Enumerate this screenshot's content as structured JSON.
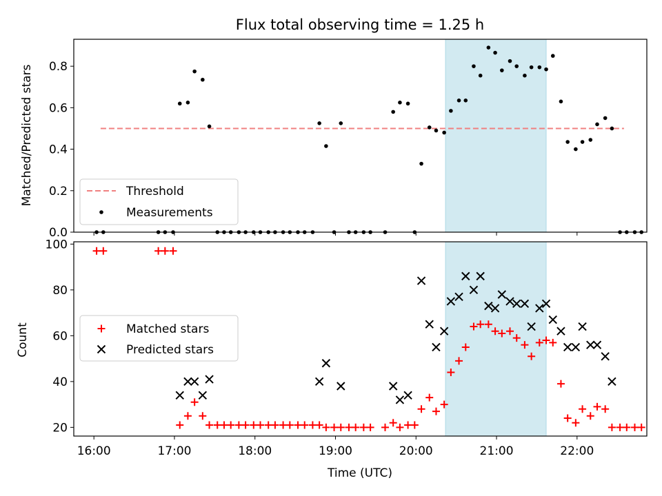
{
  "chart_data": [
    {
      "type": "scatter",
      "title": "Flux total observing time = 1.25 h",
      "ylabel": "Matched/Predicted stars",
      "xlim": [
        "15:45",
        "22:52"
      ],
      "ylim": [
        0,
        0.93
      ],
      "yticks": [
        "0.0",
        "0.2",
        "0.4",
        "0.6",
        "0.8"
      ],
      "highlight_span": {
        "start": "20:22",
        "end": "21:37",
        "color": "#add8e6"
      },
      "threshold": {
        "name": "Threshold",
        "value": 0.5,
        "x_start": "16:05",
        "x_end": "22:35",
        "color": "#f08080"
      },
      "legend_position": "lower left",
      "series": [
        {
          "name": "Measurements",
          "color": "#000000",
          "marker": "dot",
          "points": [
            [
              "16:02",
              0
            ],
            [
              "16:07",
              0
            ],
            [
              "16:48",
              0
            ],
            [
              "16:53",
              0
            ],
            [
              "16:59",
              0
            ],
            [
              "17:04",
              0.62
            ],
            [
              "17:10",
              0.625
            ],
            [
              "17:15",
              0.775
            ],
            [
              "17:21",
              0.735
            ],
            [
              "17:26",
              0.51
            ],
            [
              "17:32",
              0
            ],
            [
              "17:37",
              0
            ],
            [
              "17:42",
              0
            ],
            [
              "17:48",
              0
            ],
            [
              "17:53",
              0
            ],
            [
              "17:59",
              0
            ],
            [
              "18:04",
              0
            ],
            [
              "18:10",
              0
            ],
            [
              "18:15",
              0
            ],
            [
              "18:21",
              0
            ],
            [
              "18:26",
              0
            ],
            [
              "18:32",
              0
            ],
            [
              "18:37",
              0
            ],
            [
              "18:43",
              0
            ],
            [
              "18:48",
              0.525
            ],
            [
              "18:53",
              0.415
            ],
            [
              "18:59",
              0
            ],
            [
              "19:04",
              0.525
            ],
            [
              "19:10",
              0
            ],
            [
              "19:15",
              0
            ],
            [
              "19:21",
              0
            ],
            [
              "19:26",
              0
            ],
            [
              "19:37",
              0
            ],
            [
              "19:43",
              0.58
            ],
            [
              "19:48",
              0.625
            ],
            [
              "19:54",
              0.62
            ],
            [
              "19:59",
              0
            ],
            [
              "20:04",
              0.33
            ],
            [
              "20:10",
              0.505
            ],
            [
              "20:15",
              0.49
            ],
            [
              "20:21",
              0.48
            ],
            [
              "20:26",
              0.585
            ],
            [
              "20:32",
              0.635
            ],
            [
              "20:37",
              0.635
            ],
            [
              "20:43",
              0.8
            ],
            [
              "20:48",
              0.755
            ],
            [
              "20:54",
              0.89
            ],
            [
              "20:59",
              0.865
            ],
            [
              "21:04",
              0.78
            ],
            [
              "21:10",
              0.825
            ],
            [
              "21:15",
              0.8
            ],
            [
              "21:21",
              0.755
            ],
            [
              "21:26",
              0.795
            ],
            [
              "21:32",
              0.795
            ],
            [
              "21:37",
              0.785
            ],
            [
              "21:42",
              0.85
            ],
            [
              "21:48",
              0.63
            ],
            [
              "21:53",
              0.435
            ],
            [
              "21:59",
              0.4
            ],
            [
              "22:04",
              0.435
            ],
            [
              "22:10",
              0.445
            ],
            [
              "22:15",
              0.52
            ],
            [
              "22:21",
              0.55
            ],
            [
              "22:26",
              0.5
            ],
            [
              "22:32",
              0
            ],
            [
              "22:37",
              0
            ],
            [
              "22:43",
              0
            ],
            [
              "22:48",
              0
            ]
          ]
        }
      ]
    },
    {
      "type": "scatter",
      "xlabel": "Time (UTC)",
      "ylabel": "Count",
      "xlim": [
        "15:45",
        "22:52"
      ],
      "ylim": [
        16.2,
        101
      ],
      "xticks": [
        "16:00",
        "17:00",
        "18:00",
        "19:00",
        "20:00",
        "21:00",
        "22:00"
      ],
      "yticks": [
        "20",
        "40",
        "60",
        "80",
        "100"
      ],
      "highlight_span": {
        "start": "20:22",
        "end": "21:37",
        "color": "#add8e6"
      },
      "legend_position": "center left",
      "series": [
        {
          "name": "Matched stars",
          "color": "#ff0000",
          "marker": "plus",
          "points": [
            [
              "16:02",
              97
            ],
            [
              "16:07",
              97
            ],
            [
              "16:48",
              97
            ],
            [
              "16:53",
              97
            ],
            [
              "16:59",
              97
            ],
            [
              "17:04",
              21
            ],
            [
              "17:10",
              25
            ],
            [
              "17:15",
              31
            ],
            [
              "17:21",
              25
            ],
            [
              "17:26",
              21
            ],
            [
              "17:32",
              21
            ],
            [
              "17:37",
              21
            ],
            [
              "17:42",
              21
            ],
            [
              "17:48",
              21
            ],
            [
              "17:53",
              21
            ],
            [
              "17:59",
              21
            ],
            [
              "18:04",
              21
            ],
            [
              "18:10",
              21
            ],
            [
              "18:15",
              21
            ],
            [
              "18:21",
              21
            ],
            [
              "18:26",
              21
            ],
            [
              "18:32",
              21
            ],
            [
              "18:37",
              21
            ],
            [
              "18:43",
              21
            ],
            [
              "18:48",
              21
            ],
            [
              "18:53",
              20
            ],
            [
              "18:59",
              20
            ],
            [
              "19:04",
              20
            ],
            [
              "19:10",
              20
            ],
            [
              "19:15",
              20
            ],
            [
              "19:21",
              20
            ],
            [
              "19:26",
              20
            ],
            [
              "19:37",
              20
            ],
            [
              "19:43",
              22
            ],
            [
              "19:48",
              20
            ],
            [
              "19:54",
              21
            ],
            [
              "19:59",
              21
            ],
            [
              "20:04",
              28
            ],
            [
              "20:10",
              33
            ],
            [
              "20:15",
              27
            ],
            [
              "20:21",
              30
            ],
            [
              "20:26",
              44
            ],
            [
              "20:32",
              49
            ],
            [
              "20:37",
              55
            ],
            [
              "20:43",
              64
            ],
            [
              "20:48",
              65
            ],
            [
              "20:54",
              65
            ],
            [
              "20:59",
              62
            ],
            [
              "21:04",
              61
            ],
            [
              "21:10",
              62
            ],
            [
              "21:15",
              59
            ],
            [
              "21:21",
              56
            ],
            [
              "21:26",
              51
            ],
            [
              "21:32",
              57
            ],
            [
              "21:37",
              58
            ],
            [
              "21:42",
              57
            ],
            [
              "21:48",
              39
            ],
            [
              "21:53",
              24
            ],
            [
              "21:59",
              22
            ],
            [
              "22:04",
              28
            ],
            [
              "22:10",
              25
            ],
            [
              "22:15",
              29
            ],
            [
              "22:21",
              28
            ],
            [
              "22:26",
              20
            ],
            [
              "22:32",
              20
            ],
            [
              "22:37",
              20
            ],
            [
              "22:43",
              20
            ],
            [
              "22:48",
              20
            ]
          ]
        },
        {
          "name": "Predicted stars",
          "color": "#000000",
          "marker": "x",
          "points": [
            [
              "17:04",
              34
            ],
            [
              "17:10",
              40
            ],
            [
              "17:15",
              40
            ],
            [
              "17:21",
              34
            ],
            [
              "17:26",
              41
            ],
            [
              "18:48",
              40
            ],
            [
              "18:53",
              48
            ],
            [
              "19:04",
              38
            ],
            [
              "19:43",
              38
            ],
            [
              "19:48",
              32
            ],
            [
              "19:54",
              34
            ],
            [
              "20:04",
              84
            ],
            [
              "20:10",
              65
            ],
            [
              "20:15",
              55
            ],
            [
              "20:21",
              62
            ],
            [
              "20:26",
              75
            ],
            [
              "20:32",
              77
            ],
            [
              "20:37",
              86
            ],
            [
              "20:43",
              80
            ],
            [
              "20:48",
              86
            ],
            [
              "20:54",
              73
            ],
            [
              "20:59",
              72
            ],
            [
              "21:04",
              78
            ],
            [
              "21:10",
              75
            ],
            [
              "21:15",
              74
            ],
            [
              "21:21",
              74
            ],
            [
              "21:26",
              64
            ],
            [
              "21:32",
              72
            ],
            [
              "21:37",
              74
            ],
            [
              "21:42",
              67
            ],
            [
              "21:48",
              62
            ],
            [
              "21:53",
              55
            ],
            [
              "21:59",
              55
            ],
            [
              "22:04",
              64
            ],
            [
              "22:10",
              56
            ],
            [
              "22:15",
              56
            ],
            [
              "22:21",
              51
            ],
            [
              "22:26",
              40
            ]
          ]
        }
      ]
    }
  ]
}
